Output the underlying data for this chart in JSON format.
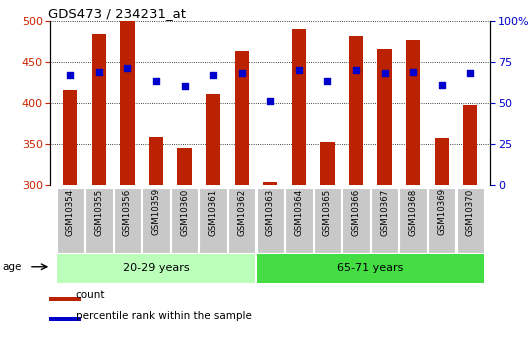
{
  "title": "GDS473 / 234231_at",
  "samples": [
    "GSM10354",
    "GSM10355",
    "GSM10356",
    "GSM10359",
    "GSM10360",
    "GSM10361",
    "GSM10362",
    "GSM10363",
    "GSM10364",
    "GSM10365",
    "GSM10366",
    "GSM10367",
    "GSM10368",
    "GSM10369",
    "GSM10370"
  ],
  "counts": [
    416,
    484,
    500,
    358,
    345,
    411,
    463,
    303,
    490,
    352,
    481,
    465,
    477,
    357,
    397
  ],
  "percentile_ranks": [
    67,
    69,
    71,
    63,
    60,
    67,
    68,
    51,
    70,
    63,
    70,
    68,
    69,
    61,
    68
  ],
  "ymin": 300,
  "ymax": 500,
  "yticks": [
    300,
    350,
    400,
    450,
    500
  ],
  "right_yticks": [
    0,
    25,
    50,
    75,
    100
  ],
  "right_yticklabels": [
    "0",
    "25",
    "50",
    "75",
    "100%"
  ],
  "bar_color": "#bb2200",
  "dot_color": "#0000cc",
  "group1_label": "20-29 years",
  "group2_label": "65-71 years",
  "group1_indices": [
    0,
    1,
    2,
    3,
    4,
    5,
    6
  ],
  "group2_indices": [
    7,
    8,
    9,
    10,
    11,
    12,
    13,
    14
  ],
  "group1_color": "#bbffbb",
  "group2_color": "#44dd44",
  "age_label": "age",
  "legend_count": "count",
  "legend_pct": "percentile rank within the sample",
  "bar_width": 0.5,
  "left_tick_color": "#cc2200",
  "right_tick_color": "#0000cc",
  "xtick_bg": "#c8c8c8"
}
